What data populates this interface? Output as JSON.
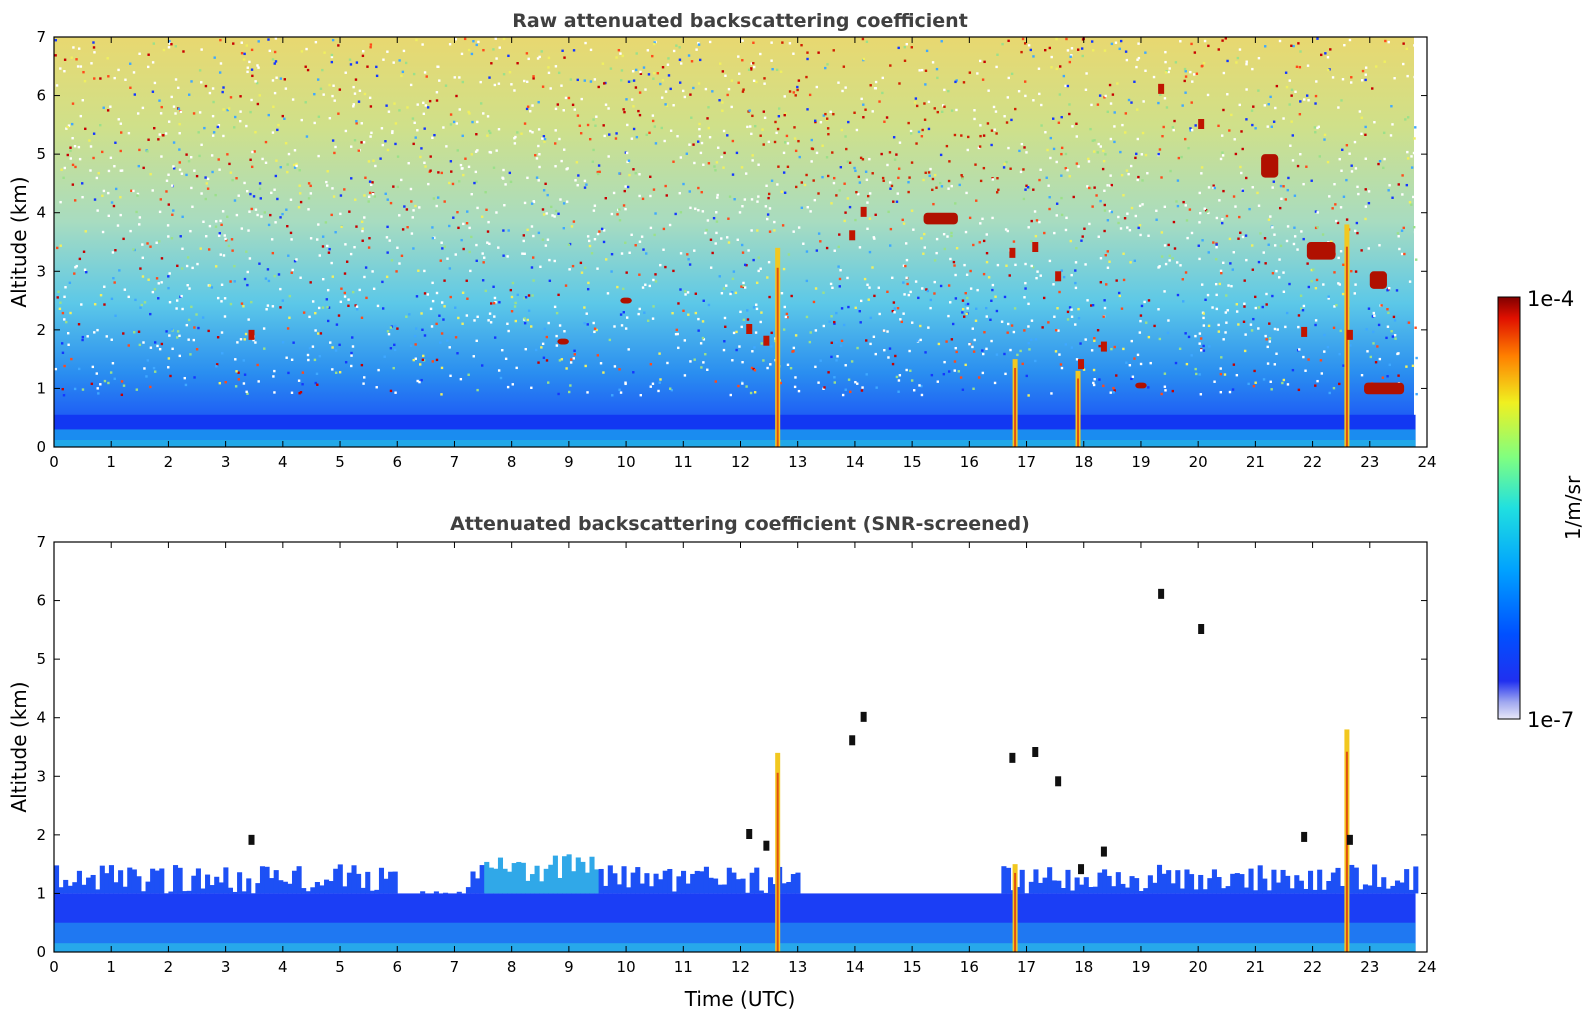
{
  "chart_data": [
    {
      "type": "heatmap",
      "title": "Raw attenuated backscattering coefficient",
      "xlabel": "",
      "ylabel": "Altitude (km)",
      "xlim": [
        0,
        24
      ],
      "ylim": [
        0,
        7
      ],
      "xticks": [
        "0",
        "1",
        "2",
        "3",
        "4",
        "5",
        "6",
        "7",
        "8",
        "9",
        "10",
        "11",
        "12",
        "13",
        "14",
        "15",
        "16",
        "17",
        "18",
        "19",
        "20",
        "21",
        "22",
        "23",
        "24"
      ],
      "yticks": [
        "0",
        "1",
        "2",
        "3",
        "4",
        "5",
        "6",
        "7"
      ],
      "x_data_end": 23.8,
      "features": [
        {
          "kind": "boundary-layer",
          "x": [
            0,
            23.8
          ],
          "y": [
            0,
            1.3
          ]
        },
        {
          "kind": "precip-shaft",
          "x": 12.65,
          "y_top": 3.4
        },
        {
          "kind": "precip-shaft",
          "x": 16.8,
          "y_top": 1.5
        },
        {
          "kind": "precip-shaft",
          "x": 17.9,
          "y_top": 1.3
        },
        {
          "kind": "precip-shaft",
          "x": 22.6,
          "y_top": 3.8
        },
        {
          "kind": "cloud",
          "x": [
            15.2,
            15.8
          ],
          "y": [
            3.8,
            4.0
          ]
        },
        {
          "kind": "cloud",
          "x": [
            21.1,
            21.4
          ],
          "y": [
            4.6,
            5.0
          ]
        },
        {
          "kind": "cloud",
          "x": [
            21.9,
            22.4
          ],
          "y": [
            3.2,
            3.5
          ]
        },
        {
          "kind": "cloud",
          "x": [
            23.0,
            23.3
          ],
          "y": [
            2.7,
            3.0
          ]
        },
        {
          "kind": "cloud",
          "x": [
            22.9,
            23.6
          ],
          "y": [
            0.9,
            1.1
          ]
        },
        {
          "kind": "cloud",
          "x": [
            18.9,
            19.1
          ],
          "y": [
            1.0,
            1.1
          ]
        },
        {
          "kind": "cloud",
          "x": [
            9.9,
            10.1
          ],
          "y": [
            2.45,
            2.55
          ]
        },
        {
          "kind": "cloud",
          "x": [
            8.8,
            9.0
          ],
          "y": [
            1.75,
            1.85
          ]
        }
      ]
    },
    {
      "type": "heatmap",
      "title": "Attenuated backscattering coefficient (SNR-screened)",
      "xlabel": "Time (UTC)",
      "ylabel": "Altitude (km)",
      "xlim": [
        0,
        24
      ],
      "ylim": [
        0,
        7
      ],
      "xticks": [
        "0",
        "1",
        "2",
        "3",
        "4",
        "5",
        "6",
        "7",
        "8",
        "9",
        "10",
        "11",
        "12",
        "13",
        "14",
        "15",
        "16",
        "17",
        "18",
        "19",
        "20",
        "21",
        "22",
        "23",
        "24"
      ],
      "yticks": [
        "0",
        "1",
        "2",
        "3",
        "4",
        "5",
        "6",
        "7"
      ],
      "x_data_end": 23.8,
      "features": [
        {
          "kind": "boundary-layer",
          "x": [
            0,
            23.8
          ],
          "y": [
            0,
            1.1
          ]
        },
        {
          "kind": "precip-shaft",
          "x": 12.65,
          "y_top": 3.4
        },
        {
          "kind": "precip-shaft",
          "x": 16.8,
          "y_top": 1.5
        },
        {
          "kind": "precip-shaft",
          "x": 22.6,
          "y_top": 3.8
        }
      ]
    }
  ],
  "colorbar": {
    "label": "1/m/sr",
    "max_label": "1e-4",
    "min_label": "1e-7",
    "scale": "log",
    "colormap": "jet"
  }
}
